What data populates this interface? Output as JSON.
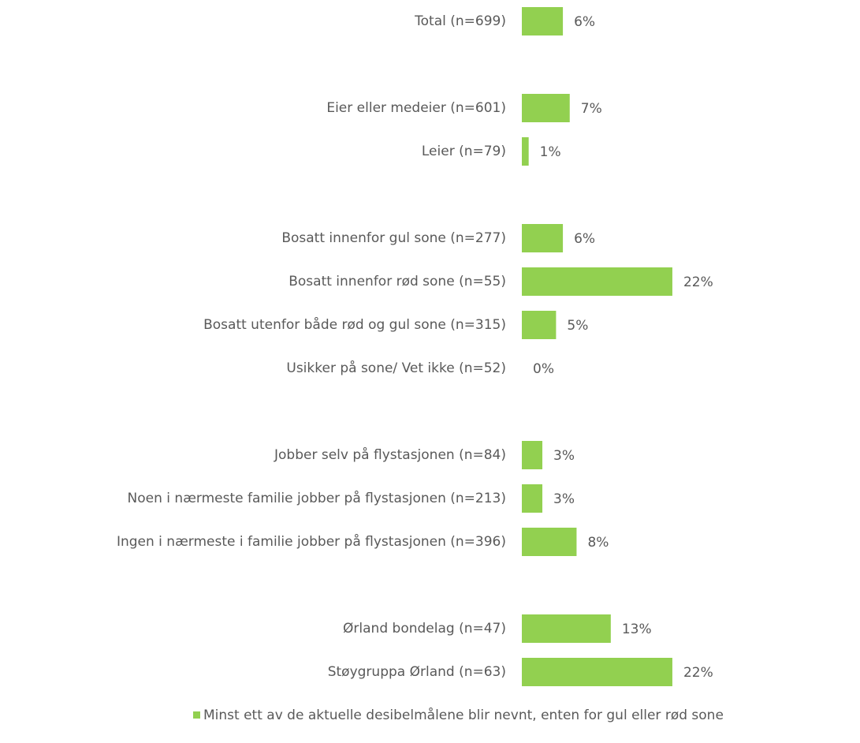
{
  "chart_data": {
    "type": "hbar",
    "categories": [
      "Total (n=699)",
      null,
      "Eier eller medeier (n=601)",
      "Leier (n=79)",
      null,
      "Bosatt innenfor gul sone (n=277)",
      "Bosatt innenfor rød sone (n=55)",
      "Bosatt utenfor både rød og gul sone (n=315)",
      "Usikker på sone/ Vet ikke (n=52)",
      null,
      "Jobber selv på flystasjonen (n=84)",
      "Noen i nærmeste familie jobber på flystasjonen (n=213)",
      "Ingen i nærmeste i familie jobber på flystasjonen (n=396)",
      null,
      "Ørland bondelag (n=47)",
      "Støygruppa Ørland (n=63)"
    ],
    "series": [
      {
        "name": "Minst ett av de aktuelle desibelmålene blir nevnt, enten for gul eller rød sone",
        "color": "#92d050",
        "values": [
          6,
          null,
          7,
          1,
          null,
          6,
          22,
          5,
          0,
          null,
          3,
          3,
          8,
          null,
          13,
          22
        ],
        "value_labels": [
          "6%",
          null,
          "7%",
          "1%",
          null,
          "6%",
          "22%",
          "5%",
          "0%",
          null,
          "3%",
          "3%",
          "8%",
          null,
          "13%",
          "22%"
        ]
      }
    ],
    "legend": "bottom"
  }
}
